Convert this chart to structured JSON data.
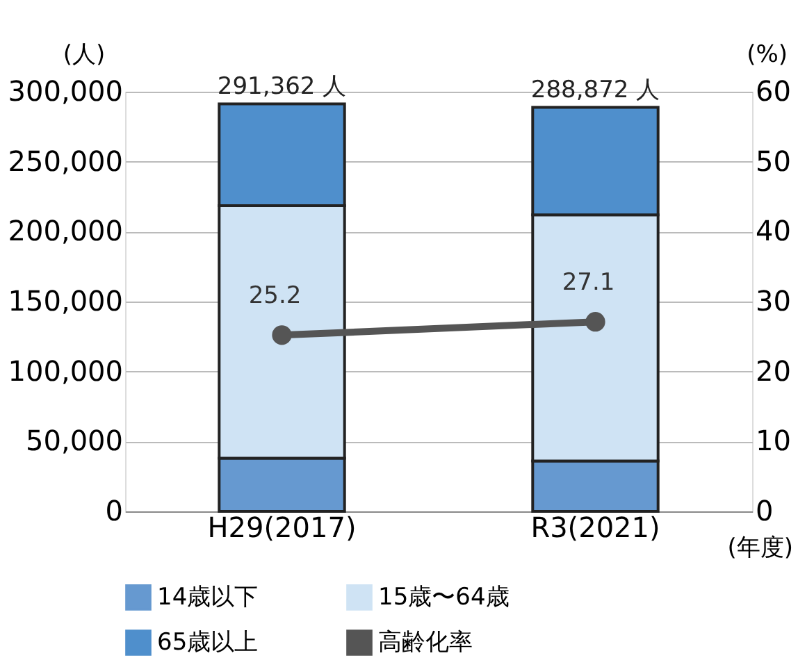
{
  "chart_data": {
    "type": "bar",
    "stacked": true,
    "categories": [
      "H29(2017)",
      "R3(2021)"
    ],
    "xlabel": "(年度)",
    "ylabel": "(人)",
    "y2label": "(%)",
    "series": [
      {
        "name": "14歳以下",
        "color": "#6699d0",
        "values": [
          38000,
          36000
        ]
      },
      {
        "name": "15歳〜64歳",
        "color": "#cfe3f4",
        "values": [
          180500,
          176000
        ]
      },
      {
        "name": "65歳以上",
        "color": "#4f8fcc",
        "values": [
          72862,
          76872
        ]
      },
      {
        "name": "高齢化率",
        "type": "line",
        "axis": "y2",
        "color": "#555555",
        "values": [
          25.2,
          27.1
        ],
        "value_labels": [
          "25.2",
          "27.1"
        ],
        "marker": "circle"
      }
    ],
    "totals": [
      "291,362 人",
      "288,872 人"
    ],
    "ylim": [
      0,
      300000
    ],
    "yticks": [
      0,
      {
        "value": 50000,
        "label": "50,000"
      },
      {
        "value": 100000,
        "label": "100,000"
      },
      {
        "value": 150000,
        "label": "150,000"
      },
      {
        "value": 200000,
        "label": "200,000"
      },
      {
        "value": 250000,
        "label": "250,000"
      },
      {
        "value": 300000,
        "label": "300,000"
      }
    ],
    "y2lim": [
      0,
      60
    ],
    "y2ticks": [
      0,
      10,
      20,
      30,
      40,
      50,
      60
    ],
    "grid": "y",
    "legend": "bottom"
  }
}
